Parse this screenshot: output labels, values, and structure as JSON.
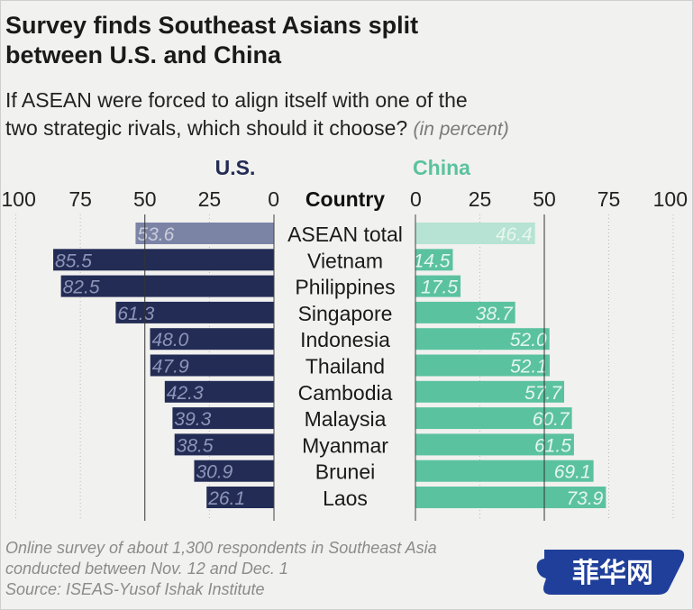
{
  "title_line1": "Survey finds Southeast Asians split",
  "title_line2": "between U.S. and China",
  "subtitle_line1": "If ASEAN were forced to align itself with one of the",
  "subtitle_line2": "two strategic rivals, which should it choose?",
  "subtitle_unit": "(in percent)",
  "source_lines": [
    "Online survey of about 1,300 respondents in Southeast Asia",
    "conducted between Nov. 12 and Dec. 1",
    "Source: ISEAS-Yusof Ishak Institute"
  ],
  "watermark_text": "菲华网",
  "colors": {
    "us": "#232c55",
    "us_total": "#7c84a6",
    "china": "#5bc2a0",
    "china_total": "#b6e3d3",
    "background": "#f1f1ef"
  },
  "chart_data": {
    "type": "bar",
    "orientation": "horizontal-diverging",
    "category_header": "Country",
    "categories": [
      "ASEAN total",
      "Vietnam",
      "Philippines",
      "Singapore",
      "Indonesia",
      "Thailand",
      "Cambodia",
      "Malaysia",
      "Myanmar",
      "Brunei",
      "Laos"
    ],
    "series": [
      {
        "name": "U.S.",
        "values": [
          53.6,
          85.5,
          82.5,
          61.3,
          48.0,
          47.9,
          42.3,
          39.3,
          38.5,
          30.9,
          26.1
        ]
      },
      {
        "name": "China",
        "values": [
          46.4,
          14.5,
          17.5,
          38.7,
          52.0,
          52.1,
          57.7,
          60.7,
          61.5,
          69.1,
          73.9
        ]
      }
    ],
    "us_ticks": [
      "100",
      "75",
      "50",
      "25",
      "0"
    ],
    "china_ticks": [
      "0",
      "25",
      "50",
      "75",
      "100"
    ],
    "xlim": [
      0,
      100
    ],
    "grid": true,
    "reference_line": 50
  }
}
